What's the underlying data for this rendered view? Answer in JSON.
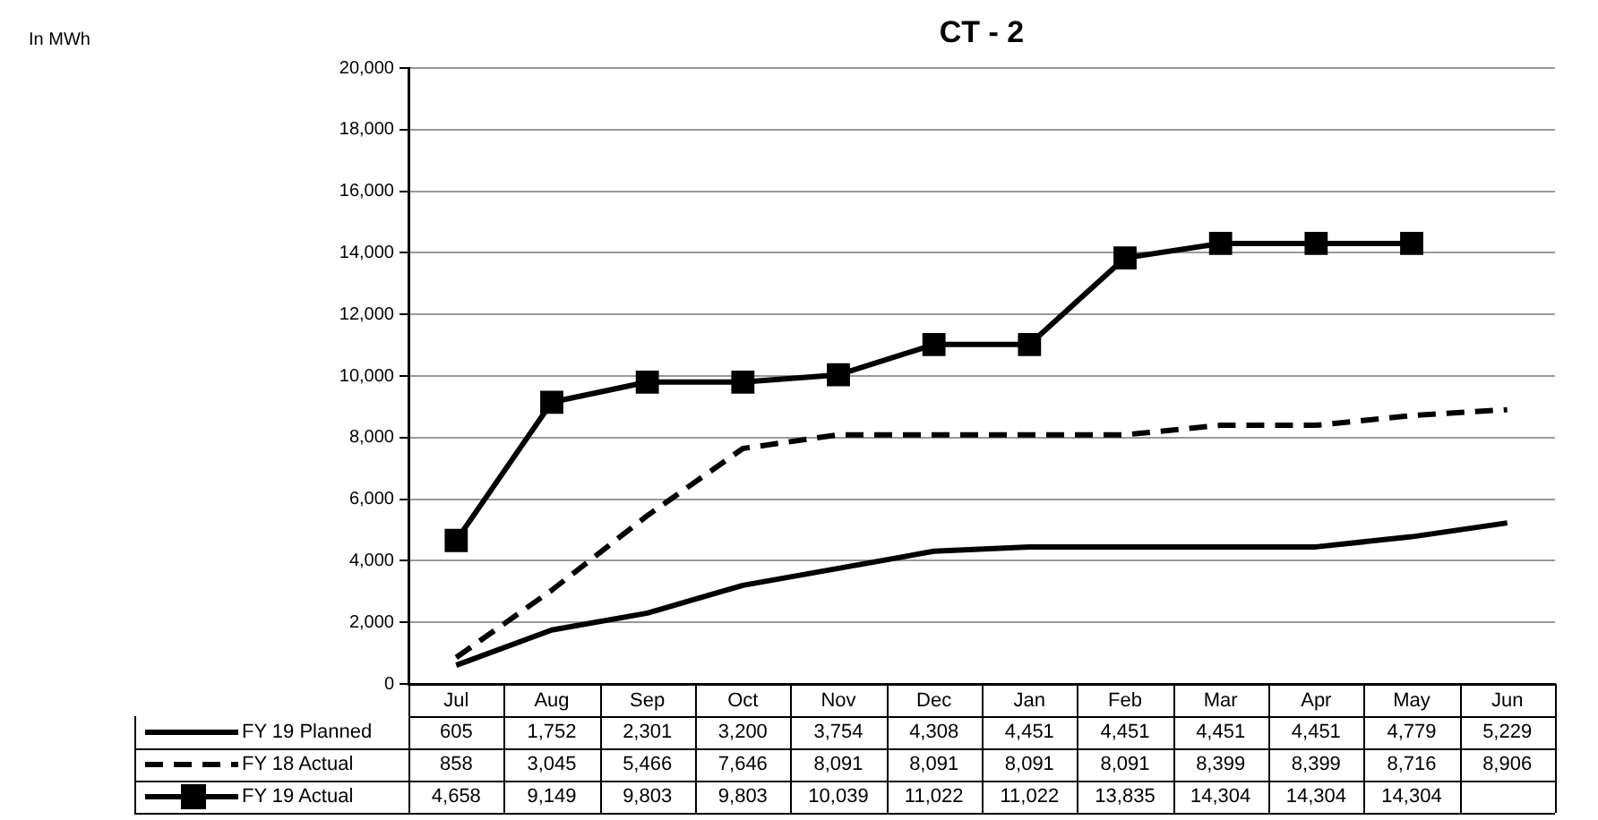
{
  "chart_data": {
    "type": "line",
    "title": "CT - 2",
    "annotations": [
      "In MWh"
    ],
    "categories": [
      "Jul",
      "Aug",
      "Sep",
      "Oct",
      "Nov",
      "Dec",
      "Jan",
      "Feb",
      "Mar",
      "Apr",
      "May",
      "Jun"
    ],
    "series": [
      {
        "name": "FY 19 Planned",
        "color": "#000000",
        "line_style": "solid",
        "marker": "none",
        "values": [
          605,
          1752,
          2301,
          3200,
          3754,
          4308,
          4451,
          4451,
          4451,
          4451,
          4779,
          5229
        ],
        "value_labels": [
          "605",
          "1,752",
          "2,301",
          "3,200",
          "3,754",
          "4,308",
          "4,451",
          "4,451",
          "4,451",
          "4,451",
          "4,779",
          "5,229"
        ]
      },
      {
        "name": "FY 18 Actual",
        "color": "#000000",
        "line_style": "dashed",
        "marker": "none",
        "values": [
          858,
          3045,
          5466,
          7646,
          8091,
          8091,
          8091,
          8091,
          8399,
          8399,
          8716,
          8906
        ],
        "value_labels": [
          "858",
          "3,045",
          "5,466",
          "7,646",
          "8,091",
          "8,091",
          "8,091",
          "8,091",
          "8,399",
          "8,399",
          "8,716",
          "8,906"
        ]
      },
      {
        "name": "FY 19 Actual",
        "color": "#000000",
        "line_style": "solid",
        "marker": "square",
        "values": [
          4658,
          9149,
          9803,
          9803,
          10039,
          11022,
          11022,
          13835,
          14304,
          14304,
          14304,
          null
        ],
        "value_labels": [
          "4,658",
          "9,149",
          "9,803",
          "9,803",
          "10,039",
          "11,022",
          "11,022",
          "13,835",
          "14,304",
          "14,304",
          "14,304",
          null
        ]
      }
    ],
    "ylim": [
      0,
      20000
    ],
    "yticks": [
      0,
      {
        "value": 2000,
        "label": "2,000"
      },
      {
        "value": 4000,
        "label": "4,000"
      },
      {
        "value": 6000,
        "label": "6,000"
      },
      {
        "value": 8000,
        "label": "8,000"
      },
      {
        "value": 10000,
        "label": "10,000"
      },
      {
        "value": 12000,
        "label": "12,000"
      },
      {
        "value": 14000,
        "label": "14,000"
      },
      {
        "value": 16000,
        "label": "16,000"
      },
      {
        "value": 18000,
        "label": "18,000"
      },
      {
        "value": 20000,
        "label": "20,000"
      }
    ],
    "grid": "y",
    "legend": "bottom"
  }
}
